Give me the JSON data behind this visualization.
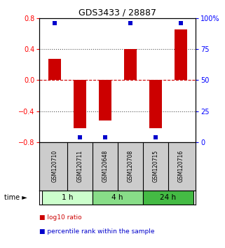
{
  "title": "GDS3433 / 28887",
  "samples": [
    "GSM120710",
    "GSM120711",
    "GSM120648",
    "GSM120708",
    "GSM120715",
    "GSM120716"
  ],
  "log10_ratios": [
    0.27,
    -0.62,
    -0.52,
    0.4,
    -0.62,
    0.65
  ],
  "percentile_ranks": [
    96,
    4,
    4,
    96,
    4,
    96
  ],
  "bar_color": "#cc0000",
  "square_color": "#0000cc",
  "ylim": [
    -0.8,
    0.8
  ],
  "ylim_right": [
    0,
    100
  ],
  "yticks_left": [
    0.8,
    0.4,
    0,
    -0.4,
    -0.8
  ],
  "yticks_right": [
    100,
    75,
    50,
    25,
    0
  ],
  "dotted_lines_black": [
    0.4,
    -0.4
  ],
  "zero_line_color": "#cc0000",
  "time_groups": [
    {
      "label": "1 h",
      "cols": [
        0,
        1
      ],
      "color": "#ccffcc"
    },
    {
      "label": "4 h",
      "cols": [
        2,
        3
      ],
      "color": "#88dd88"
    },
    {
      "label": "24 h",
      "cols": [
        4,
        5
      ],
      "color": "#44bb44"
    }
  ],
  "bar_width": 0.5,
  "background_color": "#ffffff",
  "label_bg_color": "#cccccc",
  "grid_color": "#888888"
}
